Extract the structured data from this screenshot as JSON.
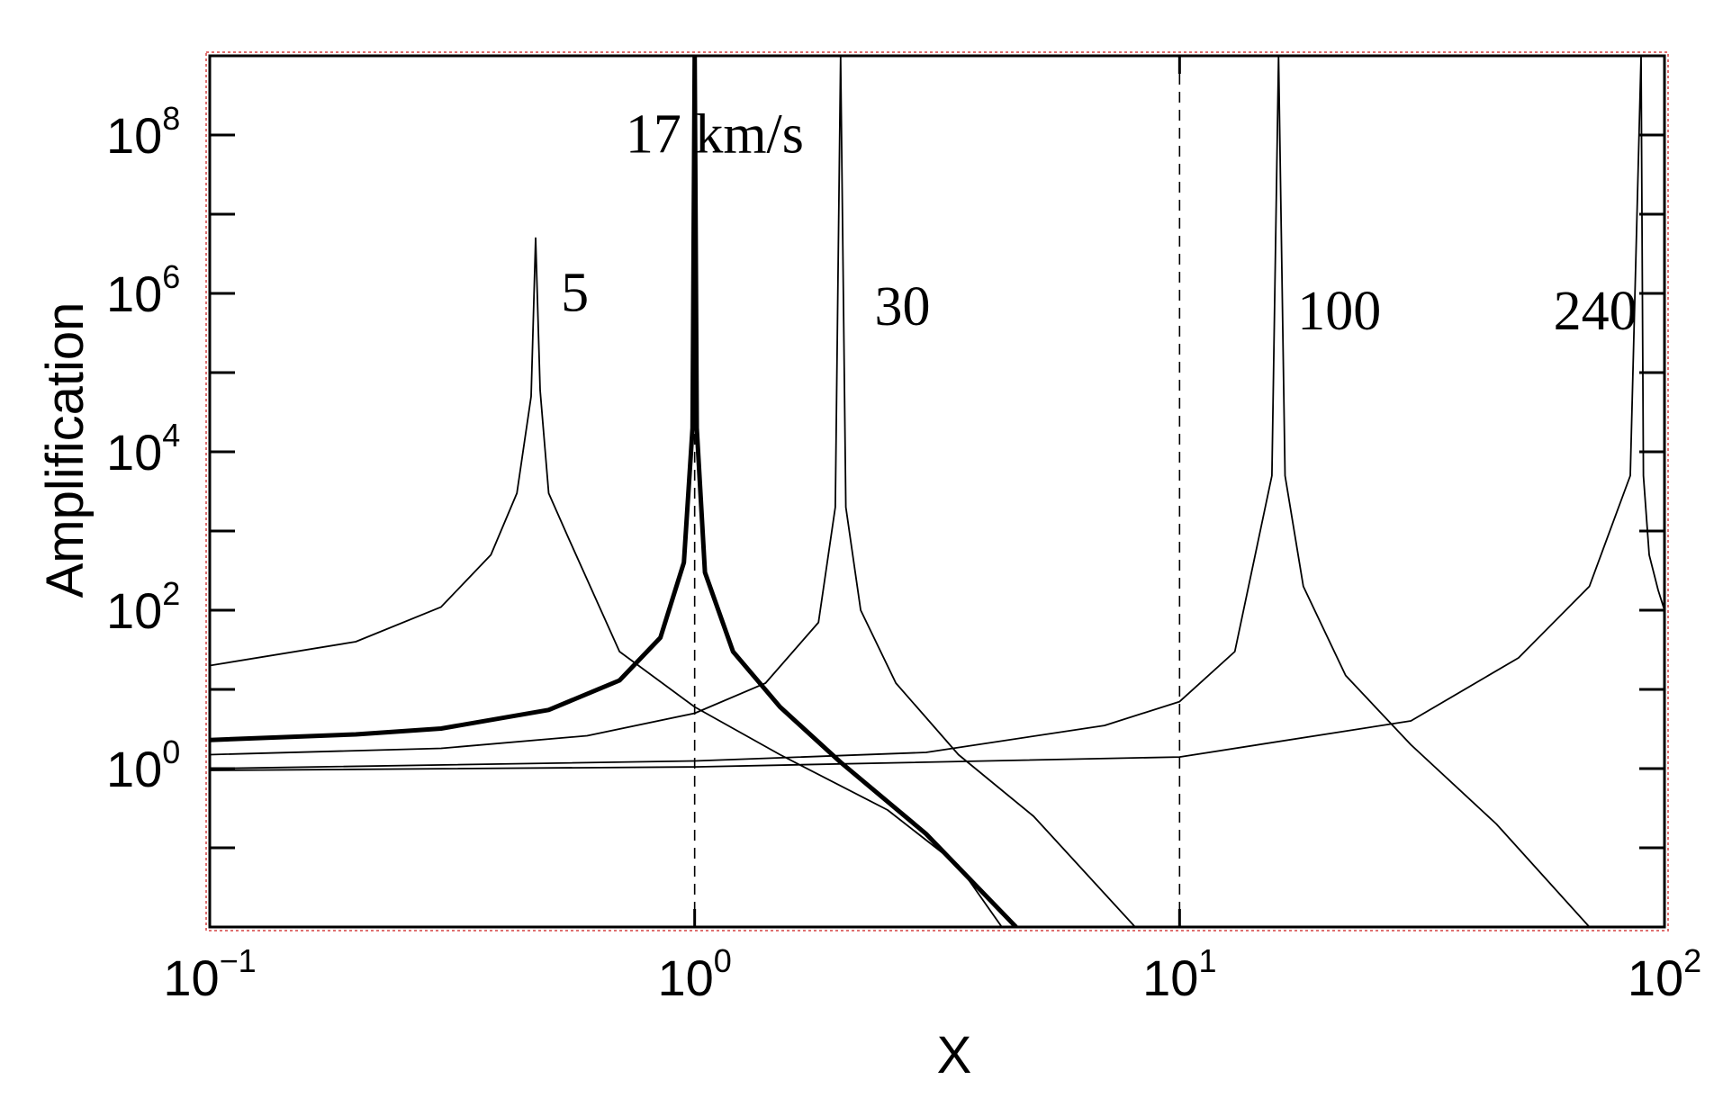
{
  "chart_data": {
    "type": "line",
    "title": "",
    "xlabel": "X",
    "ylabel": "Amplification",
    "xscale": "log",
    "yscale": "log",
    "xlim": [
      0.1,
      100
    ],
    "ylim": [
      0.01,
      1000000000
    ],
    "grid": false,
    "legend": "none",
    "x_ticks": [
      {
        "base": "10",
        "exp": "−1",
        "value": 0.1
      },
      {
        "base": "10",
        "exp": "0",
        "value": 1
      },
      {
        "base": "10",
        "exp": "1",
        "value": 10
      },
      {
        "base": "10",
        "exp": "2",
        "value": 100
      }
    ],
    "y_ticks": [
      {
        "base": "10",
        "exp": "0",
        "value": 1
      },
      {
        "base": "10",
        "exp": "2",
        "value": 100
      },
      {
        "base": "10",
        "exp": "4",
        "value": 10000
      },
      {
        "base": "10",
        "exp": "6",
        "value": 1000000
      },
      {
        "base": "10",
        "exp": "8",
        "value": 100000000
      }
    ],
    "reference_lines_x": [
      1,
      10
    ],
    "series": [
      {
        "name": "5",
        "bold": false,
        "x": [
          0.1,
          0.2,
          0.3,
          0.38,
          0.43,
          0.46,
          0.47,
          0.48,
          0.5,
          0.55,
          0.7,
          1.0,
          1.5,
          2.5,
          3.5,
          4.3
        ],
        "y": [
          20,
          40,
          110,
          500,
          3000,
          50000,
          5000000,
          60000,
          3000,
          800,
          30,
          6,
          1.5,
          0.3,
          0.06,
          0.01
        ]
      },
      {
        "name": "17 km/s",
        "bold": true,
        "x": [
          0.1,
          0.2,
          0.3,
          0.5,
          0.7,
          0.85,
          0.95,
          0.99,
          1.0,
          1.01,
          1.05,
          1.2,
          1.5,
          2.0,
          3.0,
          4.6
        ],
        "y": [
          2.3,
          2.7,
          3.2,
          5.5,
          13,
          45,
          400,
          20000,
          1000000000,
          20000,
          300,
          30,
          6,
          1.2,
          0.15,
          0.01
        ]
      },
      {
        "name": "30",
        "bold": false,
        "x": [
          0.1,
          0.3,
          0.6,
          1.0,
          1.4,
          1.8,
          1.95,
          2.0,
          2.05,
          2.2,
          2.6,
          3.5,
          5.0,
          8.1
        ],
        "y": [
          1.5,
          1.8,
          2.6,
          5,
          12,
          70,
          2000,
          1000000000,
          2000,
          100,
          12,
          1.5,
          0.25,
          0.01
        ]
      },
      {
        "name": "100",
        "bold": false,
        "x": [
          0.1,
          1.0,
          3.0,
          7.0,
          10.0,
          13.0,
          15.5,
          16.0,
          16.5,
          18.0,
          22.0,
          30.0,
          45.0,
          70.0
        ],
        "y": [
          1.0,
          1.25,
          1.6,
          3.5,
          7,
          30,
          5000,
          1000000000,
          5000,
          200,
          15,
          2,
          0.2,
          0.01
        ]
      },
      {
        "name": "240",
        "bold": false,
        "x": [
          0.1,
          1.0,
          10.0,
          30.0,
          50.0,
          70.0,
          85.0,
          89.5,
          90.5,
          93.0,
          97.0,
          100.0
        ],
        "y": [
          0.95,
          1.05,
          1.4,
          4,
          25,
          200,
          5000,
          1000000000,
          5000,
          500,
          180,
          100
        ]
      }
    ]
  }
}
